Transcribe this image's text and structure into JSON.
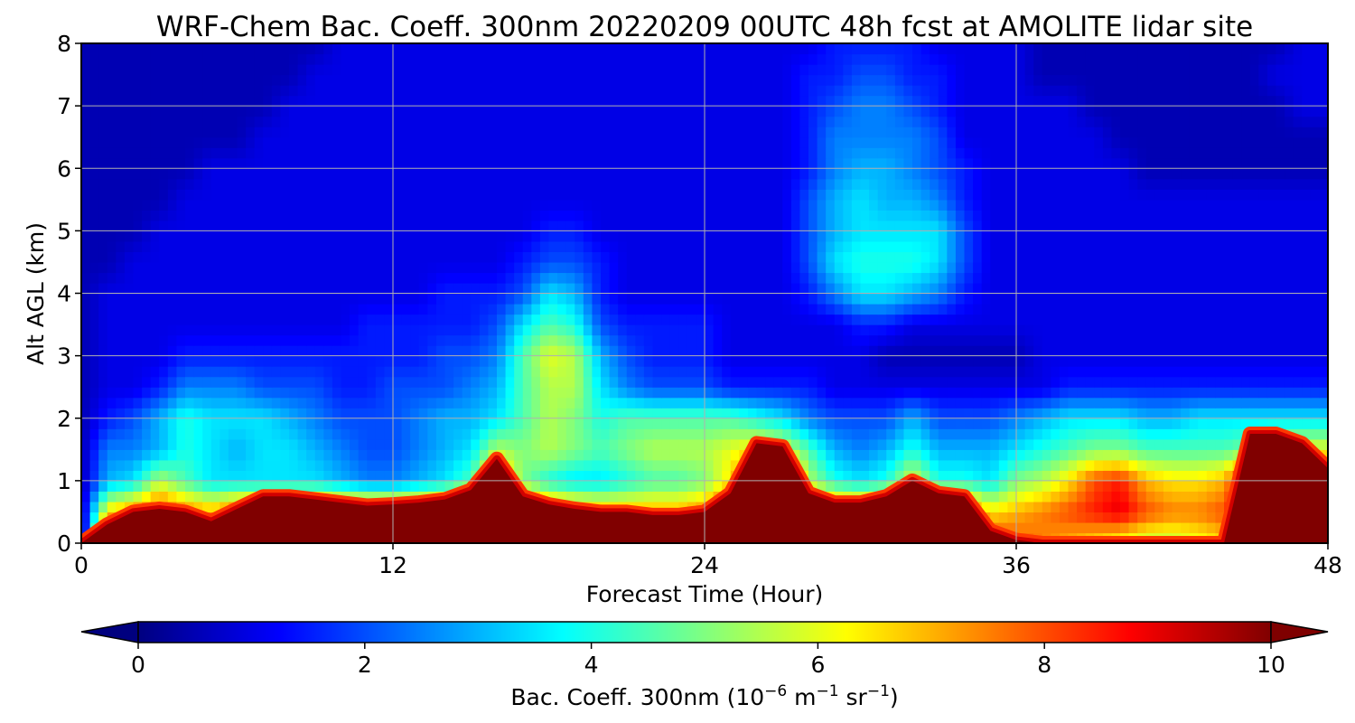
{
  "chart_data": {
    "type": "heatmap",
    "title": "WRF-Chem Bac. Coeff. 300nm  20220209 00UTC 48h fcst at AMOLITE lidar site",
    "xlabel": "Forecast Time (Hour)",
    "ylabel": "Alt AGL (km)",
    "xlim": [
      0,
      48
    ],
    "ylim": [
      0,
      8
    ],
    "x_ticks": [
      0,
      12,
      24,
      36,
      48
    ],
    "y_ticks": [
      0,
      1,
      2,
      3,
      4,
      5,
      6,
      7,
      8
    ],
    "grid": true,
    "colormap": "jet",
    "colorbar": {
      "orientation": "horizontal",
      "position": "bottom",
      "range": [
        0,
        10
      ],
      "ticks": [
        0,
        2,
        4,
        6,
        8,
        10
      ],
      "extend": "both",
      "label_main": "Bac. Coeff. 300nm  (10",
      "label_exp1": "−6",
      "label_unit1": " m",
      "label_exp2": "−1",
      "label_unit2": " sr",
      "label_exp3": "−1",
      "label_close": ")"
    },
    "x_hours": [
      0,
      1,
      2,
      3,
      4,
      5,
      6,
      7,
      8,
      9,
      10,
      11,
      12,
      13,
      14,
      15,
      16,
      17,
      18,
      19,
      20,
      21,
      22,
      23,
      24,
      25,
      26,
      27,
      28,
      29,
      30,
      31,
      32,
      33,
      34,
      35,
      36,
      37,
      38,
      39,
      40,
      41,
      42,
      43,
      44,
      45,
      46,
      47,
      48
    ],
    "y_km": [
      0,
      0.5,
      1,
      1.5,
      2,
      2.5,
      3,
      3.5,
      4,
      4.5,
      5,
      5.5,
      6,
      6.5,
      7,
      7.5,
      8
    ],
    "surface_layer": {
      "description_of_values": "approx. height (km) of the saturated (>=10) surface layer top per forecast hour",
      "top_km": [
        0.0,
        0.3,
        0.5,
        0.55,
        0.5,
        0.35,
        0.55,
        0.75,
        0.75,
        0.7,
        0.65,
        0.6,
        0.62,
        0.65,
        0.7,
        0.85,
        1.35,
        0.75,
        0.62,
        0.55,
        0.5,
        0.5,
        0.45,
        0.45,
        0.5,
        0.8,
        1.6,
        1.55,
        0.8,
        0.65,
        0.65,
        0.75,
        1.0,
        0.8,
        0.75,
        0.2,
        0.05,
        0.0,
        0.0,
        0.0,
        0.0,
        0.0,
        0.0,
        0.0,
        0.0,
        1.75,
        1.75,
        1.6,
        1.2
      ]
    },
    "values_note": "Gridded backscatter coefficient (10^-6 m^-1 sr^-1), rows = y_km, columns = x_hours",
    "values": [
      [
        0.0,
        10,
        10,
        10,
        10,
        10,
        10,
        10,
        10,
        10,
        10,
        10,
        10,
        10,
        10,
        10,
        10,
        10,
        10,
        10,
        10,
        10,
        10,
        10,
        10,
        10,
        10,
        10,
        10,
        10,
        10,
        10,
        10,
        10,
        10,
        8.5,
        8.0,
        7.5,
        7.0,
        6.5,
        6.0,
        5.5,
        5.5,
        6.0,
        6.5,
        10,
        10,
        10,
        10
      ],
      [
        0.5,
        6.5,
        7.5,
        8.5,
        7.5,
        7.0,
        8.0,
        8.5,
        8.5,
        8.5,
        8.0,
        8.0,
        8.0,
        8.0,
        8.5,
        9.0,
        10,
        9.0,
        8.0,
        7.5,
        7.0,
        7.0,
        7.0,
        7.0,
        7.5,
        9.0,
        10,
        10,
        9.0,
        8.0,
        8.0,
        8.5,
        9.5,
        9.0,
        8.5,
        6.5,
        7.0,
        7.5,
        8.0,
        8.5,
        9.0,
        8.0,
        7.5,
        7.5,
        8.0,
        10,
        10,
        10,
        10
      ],
      [
        0.5,
        3.0,
        3.5,
        5.5,
        4.5,
        3.5,
        3.5,
        3.5,
        3.5,
        3.5,
        3.0,
        2.5,
        2.5,
        3.0,
        3.5,
        4.5,
        8.0,
        5.0,
        4.0,
        3.5,
        3.5,
        4.0,
        4.5,
        4.5,
        5.0,
        6.5,
        10,
        10,
        5.5,
        4.0,
        3.5,
        4.0,
        6.0,
        4.0,
        4.0,
        3.5,
        5.0,
        5.5,
        6.5,
        8.0,
        8.5,
        7.0,
        6.5,
        6.5,
        7.0,
        10,
        10,
        10,
        10
      ],
      [
        0.5,
        2.5,
        2.5,
        3.0,
        4.0,
        3.5,
        3.0,
        3.5,
        3.5,
        3.0,
        2.5,
        2.0,
        2.0,
        2.5,
        3.0,
        3.5,
        5.5,
        5.0,
        5.5,
        5.0,
        4.5,
        5.0,
        5.5,
        5.5,
        5.5,
        6.0,
        6.5,
        6.0,
        4.5,
        3.0,
        2.5,
        3.0,
        4.0,
        3.0,
        3.0,
        3.0,
        3.5,
        4.0,
        4.5,
        5.0,
        5.0,
        4.5,
        4.5,
        4.5,
        4.5,
        5.0,
        6.0,
        6.0,
        6.0
      ],
      [
        0.5,
        1.5,
        2.0,
        3.0,
        4.0,
        3.5,
        3.5,
        3.5,
        3.0,
        2.5,
        2.0,
        2.0,
        2.0,
        2.5,
        3.0,
        3.0,
        3.5,
        4.5,
        5.5,
        5.0,
        4.0,
        4.5,
        4.5,
        4.5,
        4.5,
        4.5,
        4.0,
        3.5,
        2.5,
        2.0,
        2.0,
        2.0,
        3.0,
        2.0,
        2.0,
        2.0,
        2.5,
        3.0,
        3.5,
        3.5,
        3.5,
        3.0,
        3.0,
        3.5,
        3.5,
        3.5,
        3.5,
        3.5,
        3.5
      ],
      [
        0.5,
        1.0,
        1.0,
        1.5,
        2.5,
        2.5,
        2.5,
        2.0,
        2.0,
        2.0,
        1.5,
        1.5,
        2.0,
        2.0,
        2.0,
        2.5,
        3.0,
        4.5,
        5.5,
        5.5,
        3.5,
        2.5,
        2.0,
        2.0,
        2.0,
        1.5,
        1.5,
        1.5,
        1.5,
        1.0,
        1.0,
        1.0,
        1.0,
        1.0,
        1.0,
        1.0,
        1.0,
        1.0,
        1.5,
        1.5,
        1.5,
        1.5,
        1.5,
        1.5,
        1.5,
        1.5,
        1.5,
        1.5,
        1.5
      ],
      [
        0.5,
        1.0,
        1.0,
        1.0,
        1.5,
        1.5,
        1.5,
        1.5,
        1.5,
        1.5,
        1.5,
        1.5,
        1.5,
        1.5,
        2.0,
        2.0,
        2.5,
        4.5,
        6.0,
        5.5,
        3.0,
        2.0,
        1.5,
        1.5,
        1.5,
        1.0,
        1.0,
        1.0,
        1.0,
        1.0,
        1.0,
        0.5,
        0.5,
        0.5,
        0.5,
        0.5,
        0.5,
        1.0,
        1.0,
        1.0,
        1.0,
        1.0,
        1.0,
        1.0,
        1.0,
        1.0,
        1.0,
        1.0,
        1.0
      ],
      [
        0.5,
        1.0,
        1.0,
        1.0,
        1.0,
        1.0,
        1.0,
        1.0,
        1.0,
        1.0,
        1.0,
        1.5,
        1.5,
        1.5,
        1.5,
        1.5,
        2.0,
        3.5,
        4.5,
        4.0,
        2.0,
        1.5,
        1.5,
        1.5,
        1.5,
        1.0,
        1.0,
        1.0,
        1.0,
        1.0,
        1.5,
        1.5,
        1.0,
        1.0,
        1.0,
        1.0,
        1.0,
        1.0,
        1.0,
        1.0,
        1.0,
        1.0,
        1.0,
        1.0,
        1.0,
        1.0,
        1.0,
        1.0,
        1.0
      ],
      [
        0.5,
        1.0,
        1.0,
        1.0,
        1.0,
        1.0,
        1.0,
        1.0,
        1.0,
        1.0,
        1.0,
        1.0,
        1.0,
        1.0,
        1.5,
        1.5,
        1.5,
        2.0,
        3.5,
        3.0,
        1.5,
        1.0,
        1.0,
        1.0,
        1.0,
        1.0,
        1.0,
        1.0,
        1.5,
        2.5,
        3.5,
        3.5,
        3.0,
        2.5,
        1.5,
        1.0,
        1.0,
        1.0,
        1.0,
        1.0,
        1.0,
        1.0,
        1.0,
        1.0,
        1.0,
        1.0,
        1.0,
        1.0,
        1.0
      ],
      [
        0.5,
        0.5,
        1.0,
        1.0,
        1.0,
        1.0,
        1.0,
        1.0,
        1.0,
        1.0,
        1.0,
        1.0,
        1.0,
        1.0,
        1.0,
        1.0,
        1.0,
        1.5,
        2.0,
        2.0,
        1.5,
        1.0,
        1.0,
        1.0,
        1.0,
        1.0,
        1.0,
        1.0,
        2.0,
        3.5,
        4.0,
        4.0,
        4.0,
        3.5,
        2.0,
        1.0,
        1.0,
        1.0,
        1.0,
        1.0,
        1.0,
        1.0,
        1.0,
        1.0,
        1.0,
        1.0,
        1.0,
        1.0,
        1.0
      ],
      [
        0.5,
        0.5,
        0.5,
        1.0,
        1.0,
        1.0,
        1.0,
        1.0,
        1.0,
        1.0,
        1.0,
        1.0,
        1.0,
        1.0,
        1.0,
        1.0,
        1.0,
        1.0,
        1.5,
        1.5,
        1.0,
        1.0,
        1.0,
        1.0,
        1.0,
        1.0,
        1.0,
        1.0,
        2.0,
        3.0,
        3.5,
        3.5,
        3.5,
        3.5,
        2.0,
        1.0,
        1.0,
        1.0,
        1.0,
        1.0,
        1.0,
        1.0,
        1.0,
        1.0,
        1.0,
        1.0,
        1.0,
        1.0,
        1.0
      ],
      [
        0.5,
        0.5,
        0.5,
        0.5,
        1.0,
        1.0,
        1.0,
        1.0,
        1.0,
        1.0,
        1.0,
        1.0,
        1.0,
        1.0,
        1.0,
        1.0,
        1.0,
        1.0,
        1.0,
        1.0,
        1.0,
        1.0,
        1.0,
        1.0,
        1.0,
        1.0,
        1.0,
        1.0,
        2.0,
        3.0,
        3.5,
        3.0,
        3.0,
        2.5,
        1.5,
        1.0,
        1.0,
        1.0,
        1.0,
        1.0,
        1.0,
        1.0,
        1.0,
        1.0,
        1.0,
        1.0,
        1.0,
        1.0,
        1.0
      ],
      [
        0.5,
        0.5,
        0.5,
        0.5,
        0.5,
        1.0,
        1.0,
        1.0,
        1.0,
        1.0,
        1.0,
        1.0,
        1.0,
        1.0,
        1.0,
        1.0,
        1.0,
        1.0,
        1.0,
        1.0,
        1.0,
        1.0,
        1.0,
        1.0,
        1.0,
        1.0,
        1.0,
        1.0,
        1.5,
        2.5,
        3.0,
        3.0,
        2.5,
        2.0,
        1.5,
        1.0,
        1.0,
        1.0,
        1.0,
        1.0,
        1.0,
        0.5,
        0.5,
        0.5,
        0.5,
        0.5,
        0.5,
        0.5,
        0.5
      ],
      [
        0.5,
        0.5,
        0.5,
        0.5,
        0.5,
        0.5,
        0.5,
        1.0,
        1.0,
        1.0,
        1.0,
        1.0,
        1.0,
        1.0,
        1.0,
        1.0,
        1.0,
        1.0,
        1.0,
        1.0,
        1.0,
        1.0,
        1.0,
        1.0,
        1.0,
        1.0,
        1.0,
        1.0,
        1.5,
        2.5,
        2.5,
        2.5,
        2.5,
        2.0,
        1.0,
        1.0,
        1.0,
        1.0,
        1.0,
        1.0,
        0.5,
        0.5,
        0.5,
        0.5,
        0.5,
        0.5,
        0.5,
        0.5,
        0.5
      ],
      [
        0.5,
        0.5,
        0.5,
        0.5,
        0.5,
        0.5,
        0.5,
        0.5,
        1.0,
        1.0,
        1.0,
        1.0,
        1.0,
        1.0,
        1.0,
        1.0,
        1.0,
        1.0,
        1.0,
        1.0,
        1.0,
        1.0,
        1.0,
        1.0,
        1.0,
        1.0,
        1.0,
        1.0,
        1.5,
        2.0,
        2.5,
        2.5,
        2.0,
        1.5,
        1.0,
        1.0,
        1.0,
        1.0,
        1.0,
        0.5,
        0.5,
        0.5,
        0.5,
        0.5,
        0.5,
        0.5,
        0.5,
        1.0,
        1.0
      ],
      [
        0.5,
        0.5,
        0.5,
        0.5,
        0.5,
        0.5,
        0.5,
        0.5,
        0.5,
        1.0,
        1.0,
        1.0,
        1.0,
        1.0,
        1.0,
        1.0,
        1.0,
        1.0,
        1.0,
        1.0,
        1.0,
        1.0,
        1.0,
        1.0,
        1.0,
        1.0,
        1.0,
        1.0,
        1.5,
        1.5,
        2.0,
        2.0,
        1.5,
        1.5,
        1.0,
        1.0,
        1.0,
        0.5,
        0.5,
        0.5,
        0.5,
        0.5,
        0.5,
        0.5,
        0.5,
        0.5,
        1.0,
        1.0,
        1.0
      ],
      [
        0.5,
        0.5,
        0.5,
        0.5,
        0.5,
        0.5,
        0.5,
        0.5,
        0.5,
        0.5,
        1.0,
        1.0,
        1.0,
        1.0,
        1.0,
        1.0,
        1.0,
        1.0,
        1.0,
        1.0,
        1.0,
        1.0,
        1.0,
        1.0,
        1.0,
        1.0,
        1.0,
        1.0,
        1.0,
        1.5,
        1.5,
        1.5,
        1.5,
        1.0,
        1.0,
        1.0,
        1.0,
        0.5,
        0.5,
        0.5,
        0.5,
        0.5,
        0.5,
        0.5,
        0.5,
        0.5,
        0.5,
        1.0,
        1.0
      ]
    ]
  }
}
